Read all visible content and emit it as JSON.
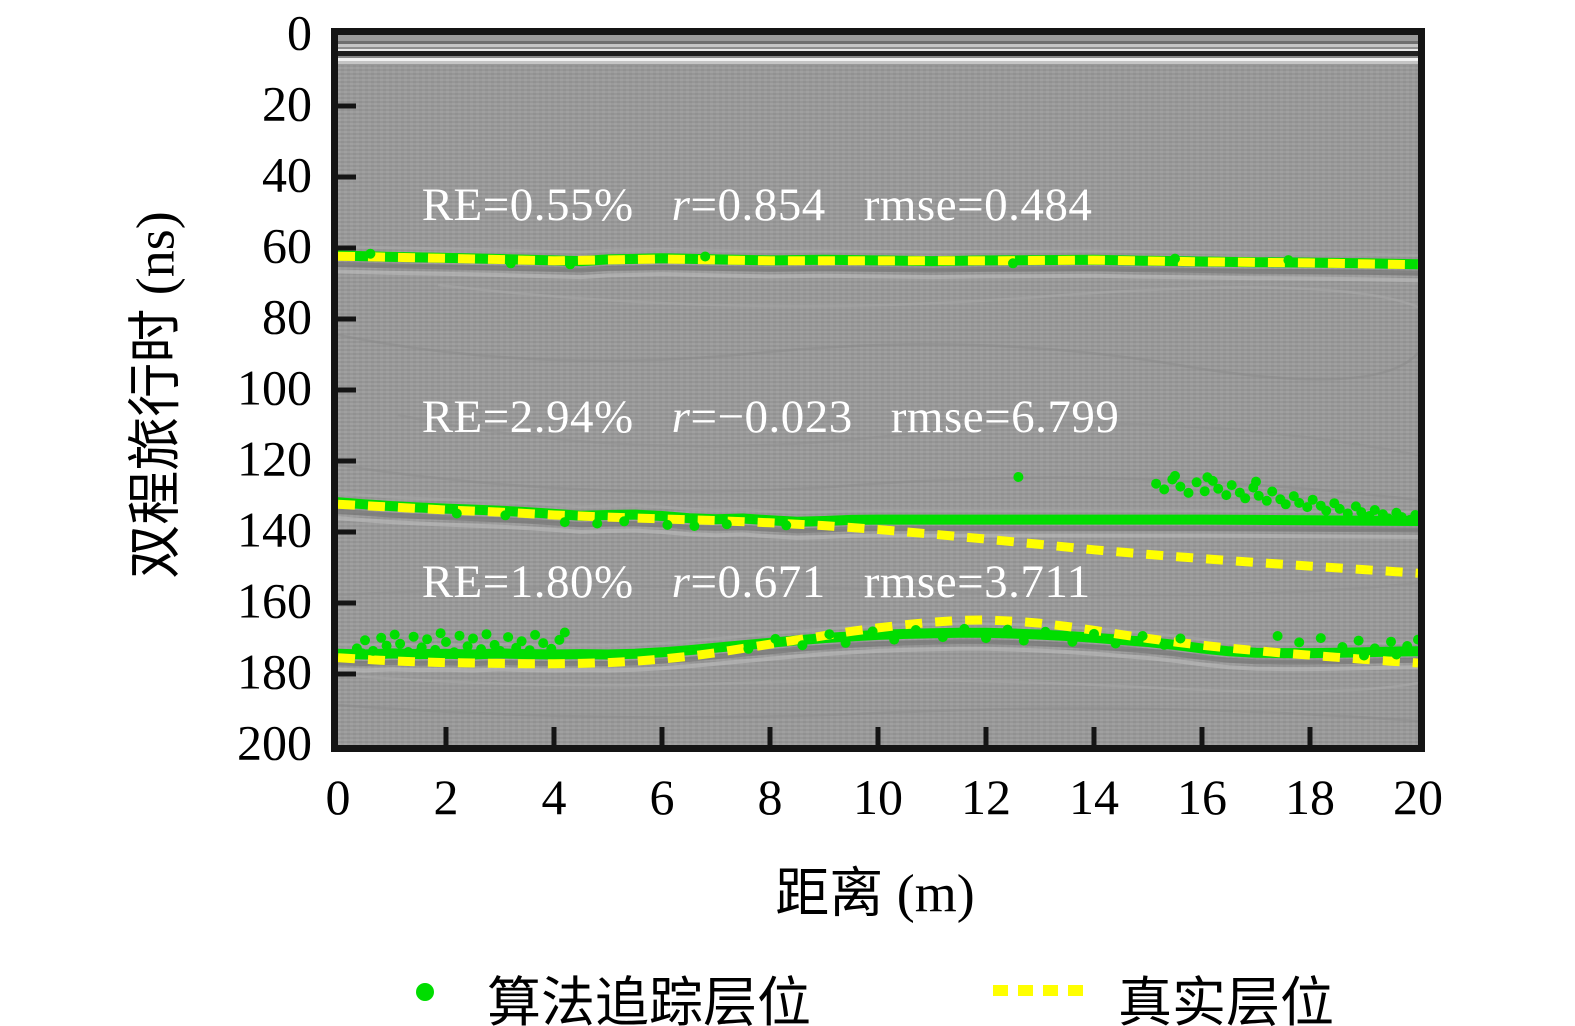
{
  "chart_data": {
    "type": "line",
    "title": "",
    "xlabel": "距离 (m)",
    "ylabel": "双程旅行时 (ns)",
    "xlim": [
      0,
      20
    ],
    "ylim": [
      200,
      0
    ],
    "y_axis_reversed": true,
    "x_ticks": [
      0,
      2,
      4,
      6,
      8,
      10,
      12,
      14,
      16,
      18,
      20
    ],
    "y_ticks": [
      0,
      20,
      40,
      60,
      80,
      100,
      120,
      140,
      160,
      180,
      200
    ],
    "grid": false,
    "legend_position": "below",
    "background_color": "#9a9a9a",
    "colors": {
      "tracked": "#00dd00",
      "true_horizon": "#ffff00",
      "annotation_text": "#ffffff",
      "axis": "#141414"
    },
    "legend": [
      {
        "label": "算法追踪层位",
        "marker": "dot",
        "color": "#00dd00"
      },
      {
        "label": "真实层位",
        "marker": "dashed-line",
        "color": "#ffff00"
      }
    ],
    "annotations": [
      {
        "parts": [
          "RE=0.55%",
          "r=0.854",
          "rmse=0.484"
        ],
        "x_m": 1.55,
        "t_ns": 48.3
      },
      {
        "parts": [
          "RE=2.94%",
          "r=−0.023",
          "rmse=6.799"
        ],
        "x_m": 1.55,
        "t_ns": 107.8
      },
      {
        "parts": [
          "RE=1.80%",
          "r=0.671",
          "rmse=3.711"
        ],
        "x_m": 1.55,
        "t_ns": 154.5
      }
    ],
    "series": [
      {
        "name": "算法追踪层位 - 层位1",
        "style": "tracked",
        "color": "#00dd00",
        "points": [
          [
            0,
            62.1
          ],
          [
            1,
            62.5
          ],
          [
            2,
            62.8
          ],
          [
            3,
            63.1
          ],
          [
            4,
            63.5
          ],
          [
            4.5,
            63.7
          ],
          [
            5,
            63.2
          ],
          [
            6,
            62.9
          ],
          [
            7,
            63.2
          ],
          [
            8,
            63.5
          ],
          [
            9,
            63.3
          ],
          [
            10,
            63.5
          ],
          [
            11,
            63.7
          ],
          [
            12,
            63.5
          ],
          [
            13,
            63.4
          ],
          [
            14,
            63.3
          ],
          [
            15,
            63.6
          ],
          [
            16,
            63.8
          ],
          [
            17,
            64.0
          ],
          [
            18,
            64.1
          ],
          [
            19,
            64.3
          ],
          [
            20,
            64.6
          ]
        ],
        "scatter": [
          [
            0.6,
            61.6
          ],
          [
            3.2,
            64.3
          ],
          [
            4.3,
            64.6
          ],
          [
            6.8,
            62.4
          ],
          [
            12.5,
            64.3
          ],
          [
            15.5,
            63.0
          ],
          [
            17.6,
            63.4
          ]
        ]
      },
      {
        "name": "真实层位 - 层位1",
        "style": "true",
        "color": "#ffff00",
        "points": [
          [
            0,
            62.3
          ],
          [
            2,
            62.9
          ],
          [
            4,
            63.6
          ],
          [
            6,
            63.1
          ],
          [
            8,
            63.6
          ],
          [
            10,
            63.6
          ],
          [
            12,
            63.6
          ],
          [
            14,
            63.4
          ],
          [
            16,
            63.9
          ],
          [
            18,
            64.2
          ],
          [
            20,
            64.7
          ]
        ]
      },
      {
        "name": "算法追踪层位 - 层位2",
        "style": "tracked",
        "color": "#00dd00",
        "points": [
          [
            0,
            131.6
          ],
          [
            0.5,
            132.2
          ],
          [
            1,
            132.7
          ],
          [
            1.5,
            133.1
          ],
          [
            2,
            133.4
          ],
          [
            2.5,
            133.7
          ],
          [
            3,
            134.0
          ],
          [
            3.5,
            134.4
          ],
          [
            4,
            134.9
          ],
          [
            4.5,
            135.4
          ],
          [
            5,
            135.2
          ],
          [
            5.5,
            135.1
          ],
          [
            6,
            135.5
          ],
          [
            6.5,
            136.1
          ],
          [
            7,
            136.4
          ],
          [
            7.5,
            136.2
          ],
          [
            8,
            136.7
          ],
          [
            8.5,
            137.1
          ],
          [
            9,
            136.9
          ],
          [
            9.5,
            136.6
          ],
          [
            10,
            136.5
          ],
          [
            11,
            136.5
          ],
          [
            12,
            136.5
          ],
          [
            13,
            136.5
          ],
          [
            14,
            136.5
          ],
          [
            15,
            136.5
          ],
          [
            16,
            136.5
          ],
          [
            17,
            136.6
          ],
          [
            18,
            136.7
          ],
          [
            19,
            136.8
          ],
          [
            20,
            136.9
          ]
        ],
        "scatter": [
          [
            2.2,
            134.8
          ],
          [
            3.1,
            135.3
          ],
          [
            4.2,
            137.2
          ],
          [
            4.8,
            137.6
          ],
          [
            5.3,
            137.0
          ],
          [
            6.1,
            138.0
          ],
          [
            6.6,
            138.3
          ],
          [
            7.2,
            137.8
          ],
          [
            8.3,
            138.1
          ],
          [
            12.6,
            124.5
          ],
          [
            15.15,
            126.4
          ],
          [
            15.3,
            128.0
          ],
          [
            15.45,
            125.2
          ],
          [
            15.5,
            124.2
          ],
          [
            15.6,
            127.2
          ],
          [
            15.75,
            129.0
          ],
          [
            15.9,
            126.0
          ],
          [
            16.05,
            128.5
          ],
          [
            16.1,
            124.6
          ],
          [
            16.2,
            125.6
          ],
          [
            16.3,
            127.8
          ],
          [
            16.45,
            129.6
          ],
          [
            16.55,
            126.8
          ],
          [
            16.7,
            128.9
          ],
          [
            16.8,
            130.5
          ],
          [
            16.95,
            127.5
          ],
          [
            17.0,
            125.8
          ],
          [
            17.05,
            129.8
          ],
          [
            17.2,
            131.2
          ],
          [
            17.3,
            128.6
          ],
          [
            17.45,
            130.8
          ],
          [
            17.55,
            132.2
          ],
          [
            17.7,
            129.9
          ],
          [
            17.8,
            131.8
          ],
          [
            17.95,
            133.0
          ],
          [
            18.05,
            130.9
          ],
          [
            18.2,
            132.6
          ],
          [
            18.3,
            134.0
          ],
          [
            18.45,
            131.9
          ],
          [
            18.55,
            133.5
          ],
          [
            18.7,
            134.8
          ],
          [
            18.85,
            132.8
          ],
          [
            18.95,
            134.4
          ],
          [
            19.1,
            135.5
          ],
          [
            19.2,
            133.8
          ],
          [
            19.35,
            135.0
          ],
          [
            19.45,
            136.2
          ],
          [
            19.6,
            134.6
          ],
          [
            19.7,
            135.8
          ],
          [
            19.85,
            136.6
          ],
          [
            19.95,
            135.2
          ]
        ]
      },
      {
        "name": "真实层位 - 层位2",
        "style": "true",
        "color": "#ffff00",
        "points": [
          [
            0,
            132.2
          ],
          [
            1,
            133.0
          ],
          [
            2,
            133.8
          ],
          [
            3,
            134.4
          ],
          [
            4,
            135.2
          ],
          [
            5,
            135.8
          ],
          [
            6,
            136.3
          ],
          [
            7,
            136.8
          ],
          [
            8,
            137.4
          ],
          [
            9,
            138.2
          ],
          [
            10,
            139.3
          ],
          [
            11,
            140.6
          ],
          [
            12,
            142.0
          ],
          [
            13,
            143.5
          ],
          [
            14,
            145.0
          ],
          [
            15,
            146.3
          ],
          [
            16,
            147.5
          ],
          [
            17,
            148.6
          ],
          [
            18,
            149.6
          ],
          [
            19,
            150.6
          ],
          [
            20,
            151.6
          ]
        ]
      },
      {
        "name": "算法追踪层位 - 层位3",
        "style": "tracked",
        "color": "#00dd00",
        "points": [
          [
            0,
            174.3
          ],
          [
            0.5,
            174.5
          ],
          [
            1,
            174.2
          ],
          [
            1.5,
            174.4
          ],
          [
            2,
            174.3
          ],
          [
            2.5,
            174.5
          ],
          [
            3,
            174.2
          ],
          [
            3.5,
            174.4
          ],
          [
            4,
            174.5
          ],
          [
            4.5,
            174.4
          ],
          [
            5,
            174.5
          ],
          [
            5.5,
            174.3
          ],
          [
            6,
            173.9
          ],
          [
            6.5,
            173.3
          ],
          [
            7,
            172.6
          ],
          [
            7.5,
            171.9
          ],
          [
            8,
            171.2
          ],
          [
            8.5,
            170.5
          ],
          [
            9,
            169.9
          ],
          [
            9.5,
            169.4
          ],
          [
            10,
            169.0
          ],
          [
            10.5,
            168.7
          ],
          [
            11,
            168.5
          ],
          [
            11.5,
            168.4
          ],
          [
            12,
            168.4
          ],
          [
            12.5,
            168.6
          ],
          [
            13,
            168.9
          ],
          [
            13.5,
            169.3
          ],
          [
            14,
            169.8
          ],
          [
            14.5,
            170.4
          ],
          [
            15,
            171.0
          ],
          [
            15.5,
            171.8
          ],
          [
            16,
            172.8
          ],
          [
            16.5,
            173.6
          ],
          [
            17,
            174.0
          ],
          [
            17.5,
            174.1
          ],
          [
            18,
            174.1
          ],
          [
            18.5,
            174.0
          ],
          [
            19,
            173.9
          ],
          [
            19.5,
            173.7
          ],
          [
            20,
            173.6
          ]
        ],
        "scatter": [
          [
            0.35,
            172.8
          ],
          [
            0.45,
            174.2
          ],
          [
            0.5,
            170.5
          ],
          [
            0.65,
            173.5
          ],
          [
            0.8,
            169.8
          ],
          [
            0.9,
            172.0
          ],
          [
            1.05,
            168.9
          ],
          [
            1.15,
            171.5
          ],
          [
            1.3,
            173.8
          ],
          [
            1.4,
            169.5
          ],
          [
            1.5,
            174.0
          ],
          [
            1.55,
            172.5
          ],
          [
            1.65,
            170.2
          ],
          [
            1.8,
            173.2
          ],
          [
            1.9,
            168.5
          ],
          [
            2.0,
            171.0
          ],
          [
            2.15,
            173.9
          ],
          [
            2.25,
            169.2
          ],
          [
            2.4,
            172.2
          ],
          [
            2.5,
            170.0
          ],
          [
            2.6,
            174.3
          ],
          [
            2.65,
            173.0
          ],
          [
            2.75,
            168.8
          ],
          [
            2.9,
            171.8
          ],
          [
            3.0,
            173.5
          ],
          [
            3.15,
            169.6
          ],
          [
            3.3,
            172.6
          ],
          [
            3.4,
            170.8
          ],
          [
            3.5,
            174.1
          ],
          [
            3.55,
            173.3
          ],
          [
            3.65,
            169.0
          ],
          [
            3.8,
            171.3
          ],
          [
            3.95,
            172.9
          ],
          [
            4.1,
            170.4
          ],
          [
            4.2,
            168.3
          ],
          [
            7.6,
            172.9
          ],
          [
            8.1,
            170.1
          ],
          [
            8.6,
            171.9
          ],
          [
            9.1,
            168.8
          ],
          [
            9.4,
            171.2
          ],
          [
            9.9,
            168.0
          ],
          [
            10.3,
            170.3
          ],
          [
            10.7,
            167.6
          ],
          [
            11.2,
            169.6
          ],
          [
            11.6,
            167.3
          ],
          [
            12.0,
            169.9
          ],
          [
            12.4,
            167.5
          ],
          [
            12.7,
            170.6
          ],
          [
            13.1,
            168.1
          ],
          [
            13.6,
            170.9
          ],
          [
            14.0,
            168.7
          ],
          [
            14.4,
            171.4
          ],
          [
            14.9,
            169.3
          ],
          [
            15.3,
            171.8
          ],
          [
            15.6,
            170.0
          ],
          [
            17.4,
            169.3
          ],
          [
            17.8,
            171.1
          ],
          [
            18.2,
            169.9
          ],
          [
            18.6,
            172.4
          ],
          [
            18.9,
            170.6
          ],
          [
            19.0,
            174.8
          ],
          [
            19.2,
            172.8
          ],
          [
            19.5,
            170.9
          ],
          [
            19.6,
            174.5
          ],
          [
            19.8,
            172.1
          ],
          [
            20.0,
            170.3
          ]
        ]
      },
      {
        "name": "真实层位 - 层位3",
        "style": "true",
        "color": "#ffff00",
        "points": [
          [
            0,
            175.4
          ],
          [
            0.5,
            175.9
          ],
          [
            1,
            176.3
          ],
          [
            1.5,
            176.6
          ],
          [
            2,
            176.8
          ],
          [
            2.5,
            176.9
          ],
          [
            3,
            177.0
          ],
          [
            3.5,
            177.1
          ],
          [
            4,
            177.1
          ],
          [
            4.5,
            177.0
          ],
          [
            5,
            176.8
          ],
          [
            5.5,
            176.4
          ],
          [
            6,
            175.8
          ],
          [
            6.5,
            175.0
          ],
          [
            7,
            174.0
          ],
          [
            7.5,
            172.8
          ],
          [
            8,
            171.6
          ],
          [
            8.5,
            170.4
          ],
          [
            9,
            169.2
          ],
          [
            9.5,
            168.0
          ],
          [
            10,
            167.0
          ],
          [
            10.5,
            166.1
          ],
          [
            11,
            165.4
          ],
          [
            11.5,
            164.9
          ],
          [
            12,
            164.8
          ],
          [
            12.5,
            165.1
          ],
          [
            13,
            165.7
          ],
          [
            13.5,
            166.6
          ],
          [
            14,
            167.7
          ],
          [
            14.5,
            168.9
          ],
          [
            15,
            170.0
          ],
          [
            15.5,
            171.0
          ],
          [
            16,
            171.9
          ],
          [
            16.5,
            172.7
          ],
          [
            17,
            173.4
          ],
          [
            17.5,
            174.1
          ],
          [
            18,
            174.7
          ],
          [
            18.5,
            175.3
          ],
          [
            19,
            175.9
          ],
          [
            19.5,
            176.4
          ],
          [
            20,
            176.9
          ]
        ]
      }
    ]
  }
}
